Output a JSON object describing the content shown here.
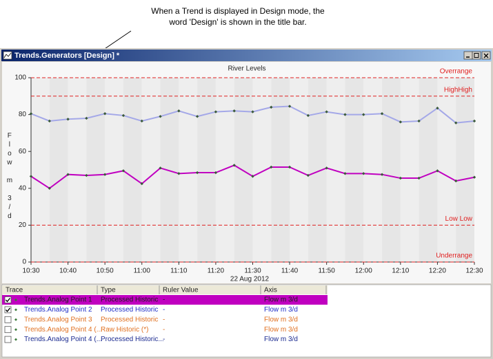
{
  "callout": {
    "lines": [
      "When a Trend is displayed in Design mode, the",
      "word 'Design' is shown in the title bar."
    ]
  },
  "window": {
    "title": "Trends.Generators [Design] *"
  },
  "chart_data": {
    "type": "line",
    "title": "River Levels",
    "y_label": "Flow m 3/d",
    "x_label": "22 Aug 2012",
    "x": [
      630,
      635,
      640,
      645,
      650,
      655,
      660,
      665,
      670,
      675,
      680,
      685,
      690,
      695,
      700,
      705,
      710,
      715,
      720,
      725,
      730,
      735,
      740,
      745,
      750
    ],
    "xlim": [
      630,
      750
    ],
    "xticks": [
      {
        "value": 630,
        "label": "10:30"
      },
      {
        "value": 640,
        "label": "10:40"
      },
      {
        "value": 650,
        "label": "10:50"
      },
      {
        "value": 660,
        "label": "11:00"
      },
      {
        "value": 670,
        "label": "11:10"
      },
      {
        "value": 680,
        "label": "11:20"
      },
      {
        "value": 690,
        "label": "11:30"
      },
      {
        "value": 700,
        "label": "11:40"
      },
      {
        "value": 710,
        "label": "11:50"
      },
      {
        "value": 720,
        "label": "12:00"
      },
      {
        "value": 730,
        "label": "12:10"
      },
      {
        "value": 740,
        "label": "12:20"
      },
      {
        "value": 750,
        "label": "12:30"
      }
    ],
    "ylim": [
      0,
      100
    ],
    "yticks": [
      0,
      20,
      40,
      60,
      80,
      100
    ],
    "series": [
      {
        "color": "#a4a8e8",
        "values": [
          80.5,
          76.5,
          77.5,
          78,
          80.5,
          79.5,
          76.5,
          79,
          82,
          79,
          81.5,
          82,
          81.5,
          84,
          84.5,
          79.5,
          81.5,
          80,
          80,
          80.5,
          76,
          76.5,
          83.5,
          75.5,
          76.5
        ]
      },
      {
        "color": "#c000c0",
        "values": [
          46.5,
          40,
          47.5,
          47,
          47.5,
          49.5,
          42.5,
          51,
          48,
          48.5,
          48.5,
          52.5,
          46.5,
          51.5,
          51.5,
          47,
          51,
          48,
          48,
          47.5,
          45.5,
          45.5,
          49.5,
          44,
          46
        ]
      }
    ],
    "limit_color": "#e02020",
    "limit_lines": [
      {
        "label": "Overrange",
        "value": 100
      },
      {
        "label": "HighHigh",
        "value": 90
      },
      {
        "label": "Low Low",
        "value": 20
      },
      {
        "label": "Underrange",
        "value": 0
      }
    ]
  },
  "trace_table": {
    "columns": [
      "Trace",
      "Type",
      "Ruler Value",
      "Axis"
    ],
    "rows": [
      {
        "cells": [
          "Trends.Analog Point 1",
          "Processed Historic",
          "-",
          "Flow m 3/d"
        ],
        "checked": true,
        "selected": true,
        "color": "#202020"
      },
      {
        "cells": [
          "Trends.Analog Point 2",
          "Processed Historic",
          "-",
          "Flow m 3/d"
        ],
        "checked": true,
        "selected": false,
        "color": "#2030c8"
      },
      {
        "cells": [
          "Trends.Analog Point 3",
          "Processed Historic",
          "-",
          "Flow m 3/d"
        ],
        "checked": false,
        "selected": false,
        "color": "#e07020"
      },
      {
        "cells": [
          "Trends.Analog Point 4 (...",
          "Raw Historic (*)",
          "-",
          "Flow m 3/d"
        ],
        "checked": false,
        "selected": false,
        "color": "#e07020"
      },
      {
        "cells": [
          "Trends.Analog Point 4 (...",
          "Processed Historic...",
          "-",
          "Flow m 3/d"
        ],
        "checked": false,
        "selected": false,
        "color": "#1a2a90"
      }
    ]
  }
}
